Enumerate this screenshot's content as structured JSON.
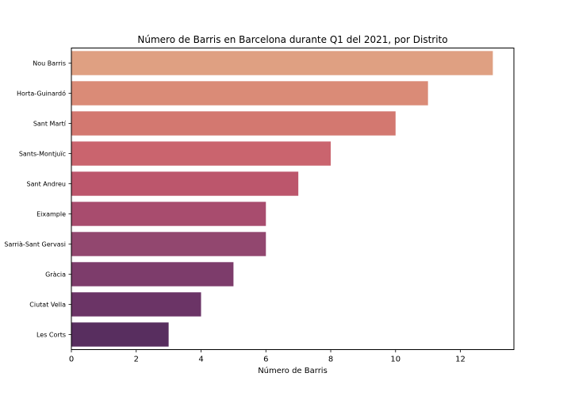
{
  "chart_data": {
    "type": "bar",
    "orientation": "horizontal",
    "title": "Número de Barris en Barcelona durante Q1 del 2021, por Distrito",
    "xlabel": "Número de Barris",
    "ylabel": "",
    "categories": [
      "Nou Barris",
      "Horta-Guinardó",
      "Sant Martí",
      "Sants-Montjuïc",
      "Sant Andreu",
      "Eixample",
      "Sarrià-Sant Gervasi",
      "Gràcia",
      "Ciutat Vella",
      "Les Corts"
    ],
    "values": [
      13,
      11,
      10,
      8,
      7,
      6,
      6,
      5,
      4,
      3
    ],
    "colors": [
      "#dfa082",
      "#da8b77",
      "#d37870",
      "#ca646e",
      "#bc566c",
      "#a84c6e",
      "#92476f",
      "#7d3c6b",
      "#6b3466",
      "#582e5f"
    ],
    "xlim": [
      0,
      13.65
    ],
    "xticks": [
      0,
      2,
      4,
      6,
      8,
      10,
      12
    ],
    "grid": false,
    "legend": "none"
  }
}
